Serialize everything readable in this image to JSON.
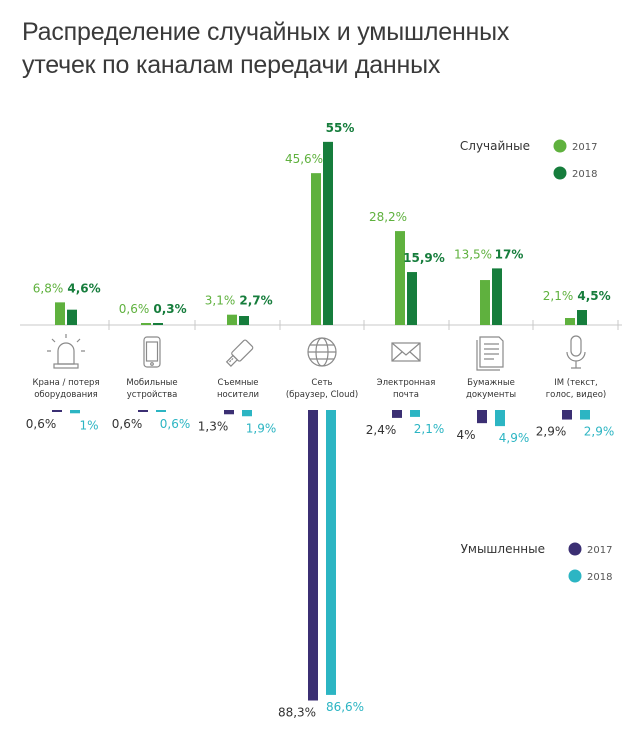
{
  "chart_data": {
    "type": "bar",
    "title": [
      "Распределение случайных и умышленных",
      "утечек по каналам передачи данных"
    ],
    "categories": [
      {
        "label": [
          "Крана / потеря",
          "оборудования"
        ],
        "icon": "siren-icon"
      },
      {
        "label": [
          "Мобильные",
          "устройства"
        ],
        "icon": "smartphone-icon"
      },
      {
        "label": [
          "Съемные",
          "носители"
        ],
        "icon": "usb-flash-icon"
      },
      {
        "label": [
          "Сеть",
          "(браузер, Cloud)"
        ],
        "icon": "globe-icon"
      },
      {
        "label": [
          "Электронная",
          "почта"
        ],
        "icon": "envelope-icon"
      },
      {
        "label": [
          "Бумажные",
          "документы"
        ],
        "icon": "document-icon"
      },
      {
        "label": [
          "IM (текст,",
          "голос, видео)"
        ],
        "icon": "microphone-icon"
      }
    ],
    "accidental": {
      "name": "Случайные",
      "series": [
        {
          "name": "2017",
          "color": "#5fb13e",
          "values": [
            6.8,
            0.6,
            3.1,
            45.6,
            28.2,
            13.5,
            2.1
          ],
          "labels": [
            "6,8%",
            "0,6%",
            "3,1%",
            "45,6%",
            "28,2%",
            "13,5%",
            "2,1%"
          ]
        },
        {
          "name": "2018",
          "color": "#167d3c",
          "values": [
            4.6,
            0.3,
            2.7,
            55,
            15.9,
            17,
            4.5
          ],
          "labels": [
            "4,6%",
            "0,3%",
            "2,7%",
            "55%",
            "15,9%",
            "17%",
            "4,5%"
          ]
        }
      ]
    },
    "intentional": {
      "name": "Умышленные",
      "series": [
        {
          "name": "2017",
          "color": "#3b2f73",
          "values": [
            0.6,
            0.6,
            1.3,
            88.3,
            2.4,
            4,
            2.9
          ],
          "labels": [
            "0,6%",
            "0,6%",
            "1,3%",
            "88,3%",
            "2,4%",
            "4%",
            "2,9%"
          ]
        },
        {
          "name": "2018",
          "color": "#2cb5c3",
          "values": [
            1,
            0.6,
            1.9,
            86.6,
            2.1,
            4.9,
            2.9
          ],
          "labels": [
            "1%",
            "0,6%",
            "1,9%",
            "86,6%",
            "2,1%",
            "4,9%",
            "2,9%"
          ]
        }
      ]
    }
  }
}
